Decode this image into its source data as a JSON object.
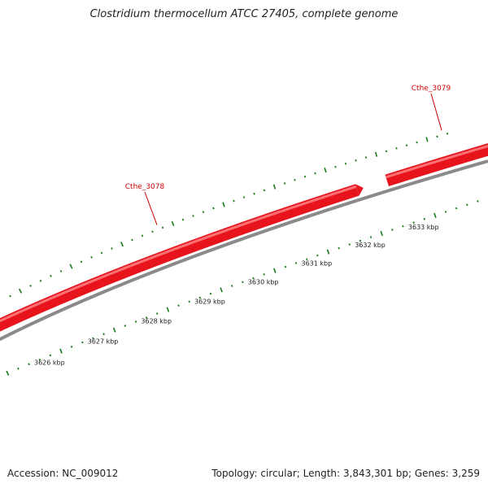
{
  "title": "Clostridium thermocellum ATCC 27405, complete genome",
  "footer": {
    "accession": "Accession: NC_009012",
    "summary": "Topology: circular; Length: 3,843,301 bp; Genes: 3,259"
  },
  "colors": {
    "gene": "#e8141c",
    "gene_highlight": "#ff7a7e",
    "gene_label": "#cc0000",
    "backbone": "#8a8a8a",
    "ticks": "#1a7a1a"
  },
  "genes": [
    {
      "name": "Cthe_3078",
      "strand": "forward",
      "start_kbp": 3625.4,
      "end_kbp": 3631.8
    },
    {
      "name": "Cthe_3079",
      "strand": "forward",
      "start_kbp": 3632.3,
      "end_kbp": 3634.3
    }
  ],
  "scale": {
    "unit": "kbp",
    "labels": [
      "3626 kbp",
      "3627 kbp",
      "3628 kbp",
      "3629 kbp",
      "3630 kbp",
      "3631 kbp",
      "3632 kbp",
      "3633 kbp"
    ]
  }
}
